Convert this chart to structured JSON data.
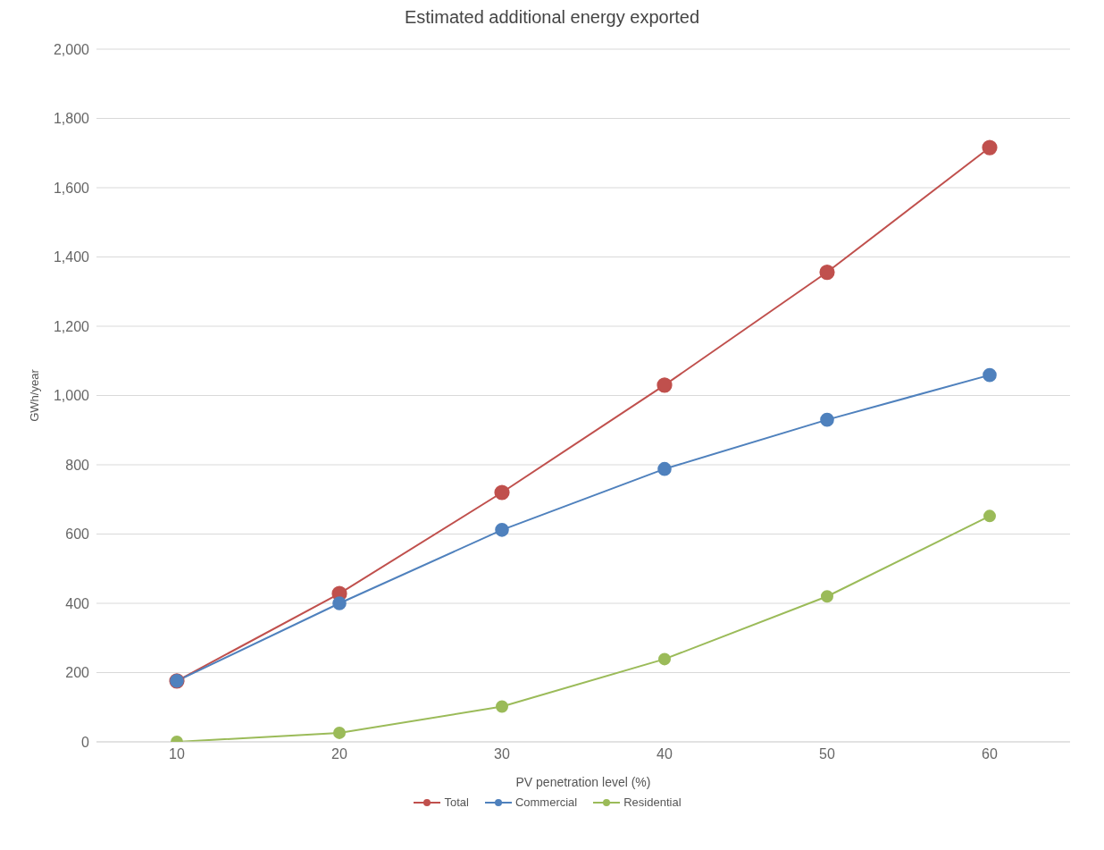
{
  "chart_data": {
    "type": "line",
    "title": "Estimated additional energy exported",
    "xlabel": "PV penetration level (%)",
    "ylabel": "GWh/year",
    "categories": [
      "10",
      "20",
      "30",
      "40",
      "50",
      "60"
    ],
    "series": [
      {
        "name": "Total",
        "color": "#c0504d",
        "values": [
          176,
          428,
          720,
          1030,
          1356,
          1716
        ]
      },
      {
        "name": "Commercial",
        "color": "#4f81bd",
        "values": [
          176,
          400,
          612,
          788,
          930,
          1059
        ]
      },
      {
        "name": "Residential",
        "color": "#9bbb59",
        "values": [
          0,
          26,
          102,
          239,
          420,
          652
        ]
      }
    ],
    "ylim": [
      0,
      2000
    ],
    "yticks": [
      0,
      {
        "value": 200,
        "label": "200"
      },
      400,
      600,
      800,
      {
        "value": 1000,
        "label": "1,000"
      },
      {
        "value": 1200,
        "label": "1,200"
      },
      {
        "value": 1400,
        "label": "1,400"
      },
      {
        "value": 1600,
        "label": "1,600"
      },
      {
        "value": 1800,
        "label": "1,800"
      },
      {
        "value": 2000,
        "label": "2,000"
      }
    ],
    "grid": "y",
    "legend": "bottom",
    "marker": "circle",
    "line_style": "solid"
  }
}
